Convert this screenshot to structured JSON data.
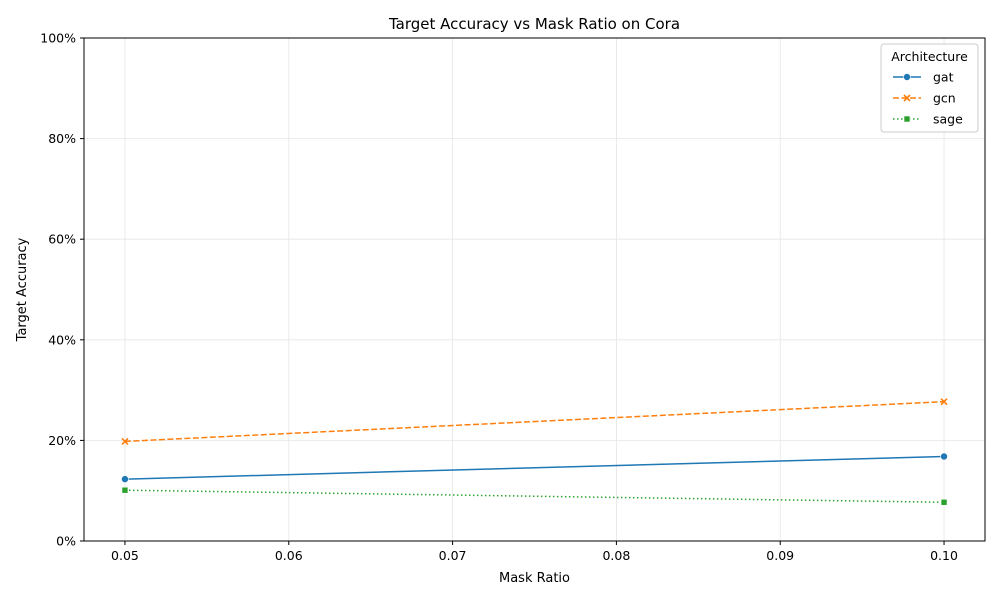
{
  "chart_data": {
    "type": "line",
    "title": "Target Accuracy vs Mask Ratio on Cora",
    "xlabel": "Mask Ratio",
    "ylabel": "Target Accuracy",
    "x": [
      0.05,
      0.1
    ],
    "xlim": [
      0.0475,
      0.1025
    ],
    "ylim": [
      0,
      1
    ],
    "xticks": [
      0.05,
      0.06,
      0.07,
      0.08,
      0.09,
      0.1
    ],
    "xtick_labels": [
      "0.05",
      "0.06",
      "0.07",
      "0.08",
      "0.09",
      "0.10"
    ],
    "yticks": [
      0,
      0.2,
      0.4,
      0.6,
      0.8,
      1.0
    ],
    "ytick_labels": [
      "0%",
      "20%",
      "40%",
      "60%",
      "80%",
      "100%"
    ],
    "grid": true,
    "legend": {
      "title": "Architecture",
      "placement": "top-right"
    },
    "series": [
      {
        "name": "gat",
        "values": [
          0.123,
          0.168
        ],
        "color": "#1f77b4",
        "dash": "solid",
        "marker": "circle"
      },
      {
        "name": "gcn",
        "values": [
          0.198,
          0.277
        ],
        "color": "#ff7f0e",
        "dash": "dashed",
        "marker": "x"
      },
      {
        "name": "sage",
        "values": [
          0.101,
          0.077
        ],
        "color": "#2ca02c",
        "dash": "dotted",
        "marker": "square"
      }
    ]
  }
}
